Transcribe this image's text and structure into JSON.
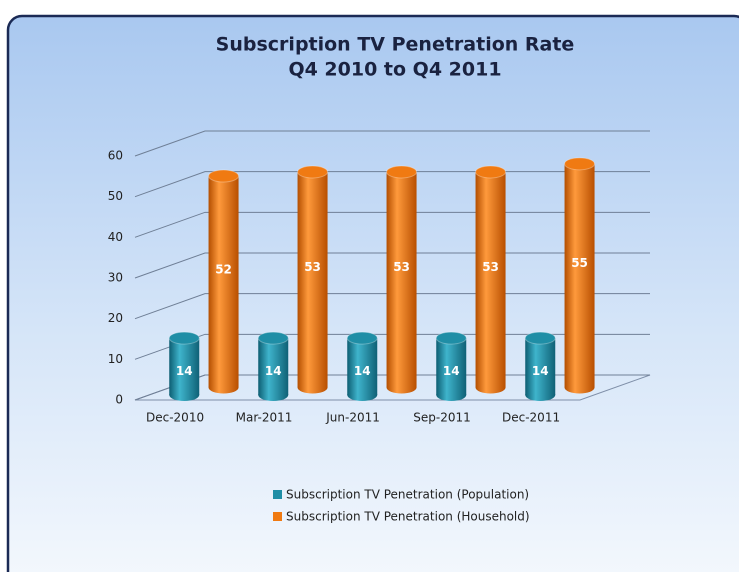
{
  "chart_data": {
    "type": "bar3d",
    "title": [
      "Subscription TV Penetration Rate",
      "Q4 2010 to Q4 2011"
    ],
    "categories": [
      "Dec-2010",
      "Mar-2011",
      "Jun-2011",
      "Sep-2011",
      "Dec-2011"
    ],
    "series": [
      {
        "name": "Subscription TV Penetration (Population)",
        "color": "#1f8ea6",
        "values": [
          14,
          14,
          14,
          14,
          14
        ]
      },
      {
        "name": "Subscription TV Penetration (Household)",
        "color": "#f07a12",
        "values": [
          52,
          53,
          53,
          53,
          55
        ]
      }
    ],
    "ylim": [
      0,
      60
    ],
    "yticks": [
      0,
      10,
      20,
      30,
      40,
      50,
      60
    ],
    "grid": true,
    "legend": "bottom"
  }
}
